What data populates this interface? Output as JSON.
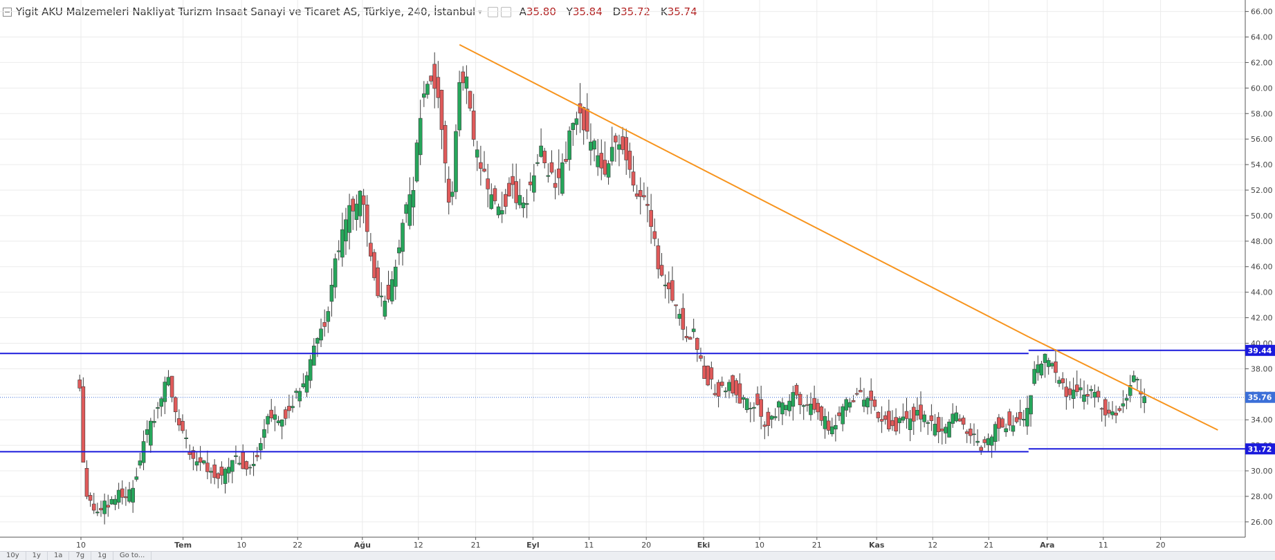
{
  "header": {
    "symbol_title": "Yigit AKU Malzemeleri Nakliyat Turizm Insaat Sanayi ve Ticaret AS, Türkiye, 240, İstanbul",
    "ohlc": [
      {
        "k": "A",
        "v": "35.80"
      },
      {
        "k": "Y",
        "v": "35.84"
      },
      {
        "k": "D",
        "v": "35.72"
      },
      {
        "k": "K",
        "v": "35.74"
      }
    ]
  },
  "colors": {
    "up": "#26a65b",
    "down": "#e05a5a",
    "level_line": "#1a1adc",
    "trend_line": "#f7941d",
    "dotted_price": "#3b6fd8",
    "grid": "#ebebeb",
    "axis_text": "#444444"
  },
  "bottom_toolbar": {
    "ranges": [
      "10y",
      "1y",
      "1a",
      "7g",
      "1g",
      "Go to..."
    ]
  },
  "chart_data": {
    "type": "candlestick",
    "y_range": [
      24.8,
      66.9
    ],
    "y_ticks": [
      "26.00",
      "28.00",
      "30.00",
      "32.00",
      "34.00",
      "36.00",
      "38.00",
      "40.00",
      "42.00",
      "44.00",
      "46.00",
      "48.00",
      "50.00",
      "52.00",
      "54.00",
      "56.00",
      "58.00",
      "60.00",
      "62.00",
      "64.00",
      "66.00"
    ],
    "x_range": [
      0,
      1000
    ],
    "x_ticks": [
      {
        "x": 65,
        "label": "10"
      },
      {
        "x": 147,
        "label": "Tem"
      },
      {
        "x": 194,
        "label": "10"
      },
      {
        "x": 239,
        "label": "22"
      },
      {
        "x": 291,
        "label": "Ağu"
      },
      {
        "x": 336,
        "label": "12"
      },
      {
        "x": 382,
        "label": "21"
      },
      {
        "x": 428,
        "label": "Eyl"
      },
      {
        "x": 473,
        "label": "11"
      },
      {
        "x": 519,
        "label": "20"
      },
      {
        "x": 565,
        "label": "Eki"
      },
      {
        "x": 610,
        "label": "10"
      },
      {
        "x": 656,
        "label": "21"
      },
      {
        "x": 704,
        "label": "Kas"
      },
      {
        "x": 749,
        "label": "12"
      },
      {
        "x": 794,
        "label": "21"
      },
      {
        "x": 841,
        "label": "Ara"
      },
      {
        "x": 886,
        "label": "11"
      },
      {
        "x": 932,
        "label": "20"
      }
    ],
    "levels": [
      {
        "y": 39.44,
        "x_split": 826,
        "y_left": 39.2,
        "label": "39.44"
      },
      {
        "y": 31.72,
        "x_split": 826,
        "y_left": 31.5,
        "label": "31.72"
      }
    ],
    "current_price": {
      "y": 35.76,
      "label": "35.76"
    },
    "trend_line": {
      "segments": [
        {
          "x1": 369,
          "y1": 63.4,
          "x2": 826,
          "y2": 40.5
        },
        {
          "x1": 826,
          "y1": 40.5,
          "x2": 978,
          "y2": 33.2
        }
      ]
    },
    "anchors": [
      {
        "x": 64,
        "y": 37
      },
      {
        "x": 68,
        "y": 28.5
      },
      {
        "x": 76,
        "y": 26.8
      },
      {
        "x": 86,
        "y": 27.4
      },
      {
        "x": 96,
        "y": 28.3
      },
      {
        "x": 106,
        "y": 28.2
      },
      {
        "x": 113,
        "y": 31.5
      },
      {
        "x": 125,
        "y": 34.5
      },
      {
        "x": 134,
        "y": 37.4
      },
      {
        "x": 141,
        "y": 34.5
      },
      {
        "x": 152,
        "y": 31.5
      },
      {
        "x": 165,
        "y": 30.4
      },
      {
        "x": 178,
        "y": 29.3
      },
      {
        "x": 188,
        "y": 31
      },
      {
        "x": 200,
        "y": 30.2
      },
      {
        "x": 208,
        "y": 31.6
      },
      {
        "x": 215,
        "y": 34.5
      },
      {
        "x": 228,
        "y": 34.3
      },
      {
        "x": 236,
        "y": 35.6
      },
      {
        "x": 245,
        "y": 36.8
      },
      {
        "x": 251,
        "y": 39.5
      },
      {
        "x": 260,
        "y": 41
      },
      {
        "x": 266,
        "y": 44.5
      },
      {
        "x": 274,
        "y": 48.5
      },
      {
        "x": 282,
        "y": 50.5
      },
      {
        "x": 290,
        "y": 51.5
      },
      {
        "x": 297,
        "y": 47
      },
      {
        "x": 305,
        "y": 43
      },
      {
        "x": 312,
        "y": 44
      },
      {
        "x": 318,
        "y": 46.5
      },
      {
        "x": 325,
        "y": 50
      },
      {
        "x": 332,
        "y": 52
      },
      {
        "x": 337,
        "y": 57.5
      },
      {
        "x": 343,
        "y": 61
      },
      {
        "x": 350,
        "y": 60
      },
      {
        "x": 356,
        "y": 55
      },
      {
        "x": 362,
        "y": 50
      },
      {
        "x": 368,
        "y": 60
      },
      {
        "x": 374,
        "y": 61
      },
      {
        "x": 380,
        "y": 55.8
      },
      {
        "x": 386,
        "y": 54
      },
      {
        "x": 392,
        "y": 51.5
      },
      {
        "x": 400,
        "y": 50.2
      },
      {
        "x": 410,
        "y": 52
      },
      {
        "x": 420,
        "y": 50.5
      },
      {
        "x": 428,
        "y": 53
      },
      {
        "x": 434,
        "y": 55.5
      },
      {
        "x": 440,
        "y": 53.5
      },
      {
        "x": 448,
        "y": 52
      },
      {
        "x": 455,
        "y": 55
      },
      {
        "x": 462,
        "y": 58
      },
      {
        "x": 470,
        "y": 56.8
      },
      {
        "x": 478,
        "y": 55
      },
      {
        "x": 485,
        "y": 53.5
      },
      {
        "x": 492,
        "y": 56
      },
      {
        "x": 498,
        "y": 55.5
      },
      {
        "x": 505,
        "y": 53.5
      },
      {
        "x": 512,
        "y": 51.5
      },
      {
        "x": 518,
        "y": 52
      },
      {
        "x": 524,
        "y": 49.2
      },
      {
        "x": 530,
        "y": 45.5
      },
      {
        "x": 537,
        "y": 44.5
      },
      {
        "x": 543,
        "y": 42.5
      },
      {
        "x": 550,
        "y": 41
      },
      {
        "x": 557,
        "y": 40.6
      },
      {
        "x": 562,
        "y": 38.5
      },
      {
        "x": 568,
        "y": 37.2
      },
      {
        "x": 576,
        "y": 36
      },
      {
        "x": 585,
        "y": 36.8
      },
      {
        "x": 596,
        "y": 35.5
      },
      {
        "x": 606,
        "y": 35.2
      },
      {
        "x": 616,
        "y": 33.5
      },
      {
        "x": 626,
        "y": 35
      },
      {
        "x": 636,
        "y": 35.8
      },
      {
        "x": 646,
        "y": 35.5
      },
      {
        "x": 656,
        "y": 34.2
      },
      {
        "x": 668,
        "y": 33.5
      },
      {
        "x": 678,
        "y": 35.3
      },
      {
        "x": 688,
        "y": 35.8
      },
      {
        "x": 698,
        "y": 35.5
      },
      {
        "x": 708,
        "y": 34
      },
      {
        "x": 718,
        "y": 33.4
      },
      {
        "x": 728,
        "y": 34
      },
      {
        "x": 738,
        "y": 34.5
      },
      {
        "x": 748,
        "y": 33.5
      },
      {
        "x": 758,
        "y": 33.3
      },
      {
        "x": 768,
        "y": 34.3
      },
      {
        "x": 778,
        "y": 33
      },
      {
        "x": 788,
        "y": 32
      },
      {
        "x": 798,
        "y": 33.2
      },
      {
        "x": 808,
        "y": 33.8
      },
      {
        "x": 818,
        "y": 33.9
      },
      {
        "x": 824,
        "y": 34
      },
      {
        "x": 830,
        "y": 37.5
      },
      {
        "x": 836,
        "y": 38.2
      },
      {
        "x": 842,
        "y": 39
      },
      {
        "x": 850,
        "y": 37.2
      },
      {
        "x": 858,
        "y": 36
      },
      {
        "x": 868,
        "y": 36.4
      },
      {
        "x": 878,
        "y": 36
      },
      {
        "x": 886,
        "y": 34.5
      },
      {
        "x": 896,
        "y": 34.4
      },
      {
        "x": 904,
        "y": 35.2
      },
      {
        "x": 910,
        "y": 37.6
      },
      {
        "x": 916,
        "y": 36.2
      },
      {
        "x": 920,
        "y": 35.76
      }
    ]
  }
}
